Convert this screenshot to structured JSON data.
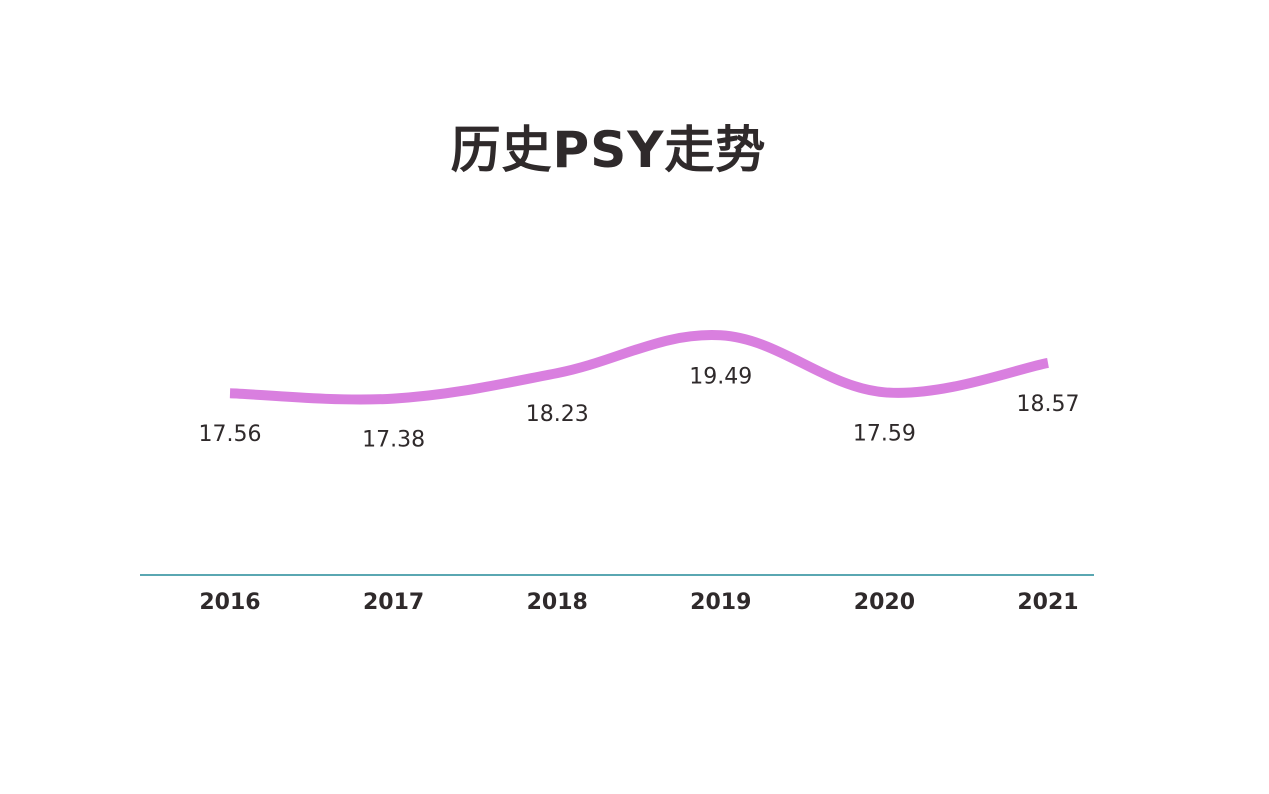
{
  "chart_data": {
    "type": "line",
    "title": "历史PSY走势",
    "categories": [
      "2016",
      "2017",
      "2018",
      "2019",
      "2020",
      "2021"
    ],
    "series": [
      {
        "values": [
          17.56,
          17.38,
          18.23,
          19.49,
          17.59,
          18.57
        ],
        "color": "#d97fdf"
      }
    ],
    "ylim": [
      12,
      24
    ],
    "grid": false,
    "axis_color": "#5aa7b2",
    "text_color": "#2f2a2b"
  }
}
